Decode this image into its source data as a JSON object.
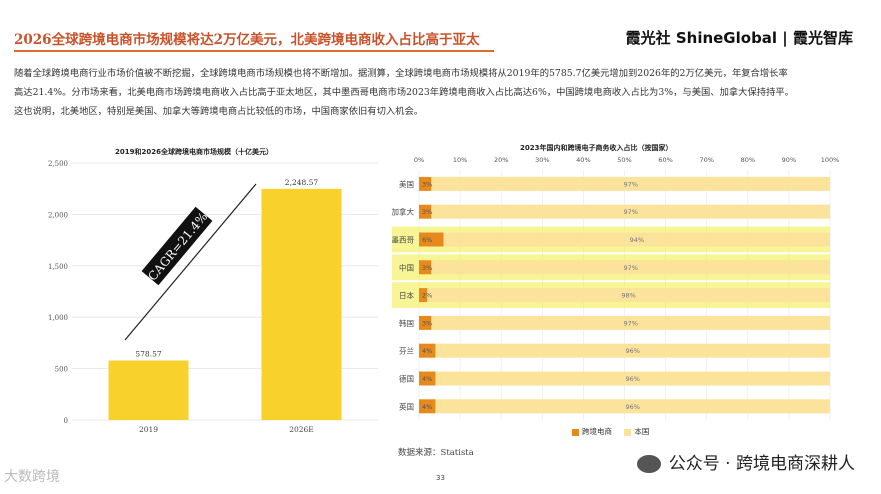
{
  "header": {
    "title": "2026全球跨境电商市场规模将达2万亿美元，北美跨境电商收入占比高于亚太",
    "brand": "霞光社 ShineGlobal | 霞光智库"
  },
  "intro_text": "随着全球跨境电商行业市场价值被不断挖掘，全球跨境电商市场规模也将不断增加。据测算，全球跨境电商市场规模将从2019年的5785.7亿美元增加到2026年的2万亿美元，年复合增长率高达21.4%。分市场来看，北美电商市场跨境电商收入占比高于亚太地区，其中墨西哥电商市场2023年跨境电商收入占比高达6%，中国跨境电商收入占比为3%，与美国、加拿大保持持平。这也说明，北美地区，特别是美国、加拿大等跨境电商占比较低的市场，中国商家依旧有切入机会。",
  "colors": {
    "title": "#c9522a",
    "bar_yellow": "#f9d12c",
    "cross_border": "#e8891c",
    "domestic": "#fbe39c",
    "highlight": "#f2ec3f"
  },
  "chart_data": [
    {
      "type": "bar",
      "title": "2019和2026全球跨境电商市场规模（十亿美元）",
      "categories": [
        "2019",
        "2026E"
      ],
      "values": [
        578.57,
        2248.57
      ],
      "value_labels": [
        "578.57",
        "2,248.57"
      ],
      "ylim": [
        0,
        2500
      ],
      "yticks": [
        0,
        500,
        1000,
        1500,
        2000,
        2500
      ],
      "ytick_labels": [
        "0",
        "500",
        "1,000",
        "1,500",
        "2,000",
        "2,500"
      ],
      "annotation": "CAGR=21.4%"
    },
    {
      "type": "bar",
      "orientation": "horizontal-stacked",
      "title": "2023年国内和跨境电子商务收入占比（按国家）",
      "xticks": [
        "0%",
        "10%",
        "20%",
        "30%",
        "40%",
        "50%",
        "60%",
        "70%",
        "80%",
        "90%",
        "100%"
      ],
      "categories": [
        "美国",
        "加拿大",
        "墨西哥",
        "中国",
        "日本",
        "韩国",
        "芬兰",
        "德国",
        "英国"
      ],
      "highlighted": [
        "墨西哥",
        "中国",
        "日本"
      ],
      "series": [
        {
          "name": "跨境电商",
          "values": [
            3,
            3,
            6,
            3,
            2,
            3,
            4,
            4,
            4
          ],
          "labels": [
            "3%",
            "3%",
            "6%",
            "3%",
            "2%",
            "3%",
            "4%",
            "4%",
            "4%"
          ]
        },
        {
          "name": "本国",
          "values": [
            97,
            97,
            94,
            97,
            98,
            97,
            96,
            96,
            96
          ],
          "labels": [
            "97%",
            "97%",
            "94%",
            "97%",
            "98%",
            "97%",
            "96%",
            "96%",
            "96%"
          ]
        }
      ]
    }
  ],
  "source": "数据来源：Statista",
  "page_number": "33",
  "footer": {
    "account": "公众号 · 跨境电商深耕人",
    "left_watermark": "大数跨境"
  }
}
